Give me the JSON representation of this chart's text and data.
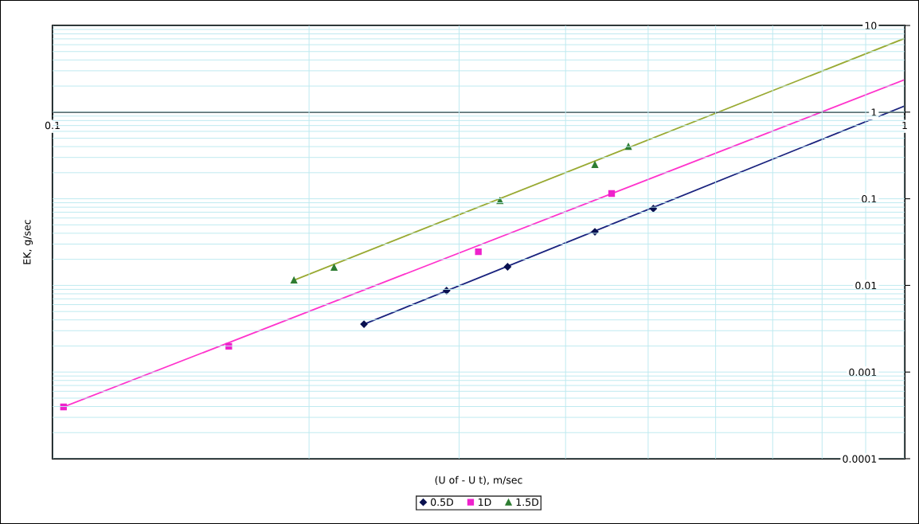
{
  "chart_data": {
    "type": "scatter",
    "xlabel": "(U of - U t), m/sec",
    "ylabel": "EK, g/sec",
    "log": "xy",
    "xlim": [
      0.1,
      1
    ],
    "xticks": [
      0.1,
      1
    ],
    "ylim": [
      0.0001,
      10
    ],
    "yticks": [
      0.0001,
      0.001,
      0.01,
      0.1,
      1,
      10
    ],
    "grid": true,
    "legend": "bottom",
    "series": [
      {
        "type": "line",
        "color": "#1a237e",
        "x": [
          0.232,
          1
        ],
        "values": [
          0.00357,
          1.18
        ],
        "marker": "none"
      },
      {
        "type": "line",
        "color": "#ff33cc",
        "x": [
          0.103,
          1
        ],
        "values": [
          0.000396,
          2.37
        ],
        "marker": "none"
      },
      {
        "type": "line",
        "color": "#99aa33",
        "x": [
          0.192,
          1
        ],
        "values": [
          0.0115,
          7.1
        ],
        "marker": "none"
      },
      {
        "type": "scatter",
        "name": "0.5D",
        "color": "#0a1150",
        "marker": "diamond",
        "x": [
          0.232,
          0.29,
          0.342,
          0.433,
          0.507
        ],
        "values": [
          0.00357,
          0.0087,
          0.0164,
          0.0416,
          0.077
        ]
      },
      {
        "type": "scatter",
        "name": "1D",
        "color": "#ee22cc",
        "marker": "square",
        "x": [
          0.103,
          0.161,
          0.316,
          0.453
        ],
        "values": [
          0.000396,
          0.00198,
          0.0245,
          0.115
        ]
      },
      {
        "type": "scatter",
        "name": "1.5D",
        "color": "#2e7d32",
        "marker": "triangle",
        "x": [
          0.192,
          0.214,
          0.335,
          0.433,
          0.474
        ],
        "values": [
          0.0115,
          0.0161,
          0.095,
          0.247,
          0.4
        ]
      }
    ]
  }
}
